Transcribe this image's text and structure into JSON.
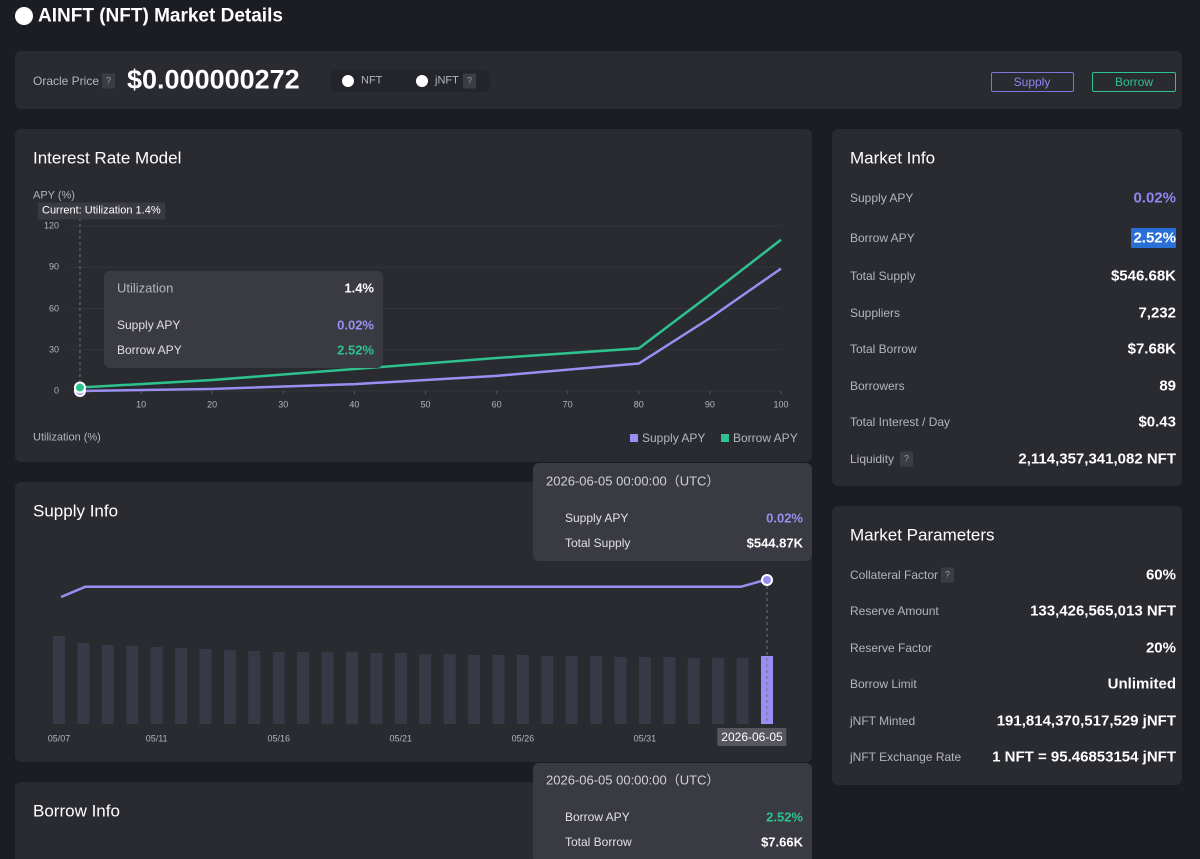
{
  "header": {
    "title": "AINFT (NFT) Market Details"
  },
  "help_icon": "?",
  "oracle": {
    "label": "Oracle Price",
    "price": "$0.000000272",
    "tokens": [
      "NFT",
      "jNFT"
    ],
    "buttons": [
      "Supply",
      "Borrow"
    ]
  },
  "interest_rate_model": {
    "title": "Interest Rate Model",
    "chart_data": {
      "type": "line",
      "y_label": "APY (%)",
      "x_label": "Utilization (%)",
      "current_label": "Current: Utilization 1.4%",
      "x": [
        1.4,
        20,
        40,
        60,
        80,
        90,
        100
      ],
      "series": [
        {
          "name": "Supply APY",
          "color": "#9b8ef2",
          "values": [
            0.02,
            1.5,
            5,
            11,
            20,
            53,
            89
          ]
        },
        {
          "name": "Borrow APY",
          "color": "#2ec28e",
          "values": [
            2.52,
            8,
            16,
            24,
            31,
            70,
            110
          ]
        }
      ],
      "xlim": [
        0,
        100
      ],
      "ylim": [
        0,
        120
      ],
      "xticks": [
        10,
        20,
        30,
        40,
        50,
        60,
        70,
        80,
        90,
        100
      ],
      "yticks": [
        0,
        30,
        60,
        90,
        120
      ]
    },
    "tooltip": {
      "rows": [
        [
          "Utilization",
          "1.4%"
        ],
        [
          "Supply APY",
          "0.02%"
        ],
        [
          "Borrow APY",
          "2.52%"
        ]
      ]
    }
  },
  "supply_info": {
    "title": "Supply Info",
    "chart_data": {
      "type": "bar-line",
      "categories": [
        "05/07",
        null,
        null,
        null,
        "05/11",
        null,
        null,
        null,
        null,
        "05/16",
        null,
        null,
        null,
        null,
        "05/21",
        null,
        null,
        null,
        null,
        "05/26",
        null,
        null,
        null,
        null,
        "05/31",
        null,
        null,
        null,
        null,
        "2026-06-05"
      ],
      "series": [
        {
          "name": "Supply APY",
          "color": "#9b8ef2",
          "values": [
            0.0185,
            0.0194,
            0.0194,
            0.0194,
            0.0194,
            0.0194,
            0.0194,
            0.0194,
            0.0194,
            0.0194,
            0.0194,
            0.0194,
            0.0194,
            0.0194,
            0.0194,
            0.0194,
            0.0194,
            0.0194,
            0.0194,
            0.0194,
            0.0194,
            0.0194,
            0.0194,
            0.0194,
            0.0194,
            0.0194,
            0.0194,
            0.0194,
            0.0194,
            0.02
          ]
        },
        {
          "name": "Total Supply",
          "color": "#383946",
          "values": [
            705,
            649,
            633,
            625,
            617,
            609,
            601,
            593,
            585,
            577,
            577,
            577,
            577,
            569,
            569,
            561,
            561,
            553,
            553,
            553,
            545,
            545,
            545,
            537,
            537,
            537,
            529,
            529,
            529,
            544.87
          ]
        }
      ]
    },
    "tooltip": {
      "title": "2026-06-05 00:00:00（UTC）",
      "values": [
        "0.02%",
        "$544.87K"
      ]
    }
  },
  "borrow_info": {
    "title": "Borrow Info",
    "tooltip": {
      "title": "2026-06-05 00:00:00（UTC）",
      "rows": [
        [
          "Borrow APY",
          "2.52%"
        ],
        [
          "Total Borrow",
          "$7.66K"
        ]
      ]
    }
  },
  "market_info": {
    "title": "Market Info",
    "rows": [
      [
        "Supply APY",
        "0.02%"
      ],
      [
        "Borrow APY",
        "2.52%"
      ],
      [
        "Total Supply",
        "$546.68K"
      ],
      [
        "Suppliers",
        "7,232"
      ],
      [
        "Total Borrow",
        "$7.68K"
      ],
      [
        "Borrowers",
        "89"
      ],
      [
        "Total Interest / Day",
        "$0.43"
      ],
      [
        "Liquidity",
        "2,114,357,341,082 NFT"
      ]
    ]
  },
  "market_parameters": {
    "title": "Market Parameters",
    "rows": [
      [
        "Collateral Factor",
        "60%"
      ],
      [
        "Reserve Amount",
        "133,426,565,013 NFT"
      ],
      [
        "Reserve Factor",
        "20%"
      ],
      [
        "Borrow Limit",
        "Unlimited"
      ],
      [
        "jNFT Minted",
        "191,814,370,517,529 jNFT"
      ],
      [
        "jNFT Exchange Rate",
        "1 NFT = 95.46853154 jNFT"
      ]
    ]
  }
}
